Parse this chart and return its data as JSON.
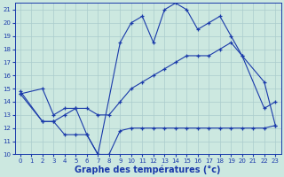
{
  "background_color": "#cce8e0",
  "grid_color": "#aacccc",
  "line_color": "#1a3aaa",
  "xlabel": "Graphe des températures (°c)",
  "xlabel_fontsize": 7,
  "xlim": [
    -0.5,
    23.5
  ],
  "ylim": [
    10,
    21.5
  ],
  "xticks": [
    0,
    1,
    2,
    3,
    4,
    5,
    6,
    7,
    8,
    9,
    10,
    11,
    12,
    13,
    14,
    15,
    16,
    17,
    18,
    19,
    20,
    21,
    22,
    23
  ],
  "yticks": [
    10,
    11,
    12,
    13,
    14,
    15,
    16,
    17,
    18,
    19,
    20,
    21
  ],
  "series": [
    {
      "x": [
        0,
        2,
        3,
        4,
        5,
        6,
        7,
        9,
        10,
        11,
        12,
        13,
        14,
        15,
        16,
        17,
        18,
        19,
        20,
        22,
        23
      ],
      "y": [
        14.6,
        12.5,
        12.5,
        13.0,
        13.5,
        11.5,
        10.0,
        18.5,
        20.0,
        20.5,
        18.5,
        21.0,
        21.5,
        21.0,
        19.5,
        20.0,
        20.5,
        19.0,
        17.5,
        13.5,
        14.0
      ]
    },
    {
      "x": [
        0,
        2,
        3,
        4,
        5,
        6,
        7,
        8,
        9,
        10,
        11,
        12,
        13,
        14,
        15,
        16,
        17,
        18,
        19,
        20,
        21,
        22,
        23
      ],
      "y": [
        14.8,
        12.5,
        12.5,
        11.5,
        11.5,
        11.5,
        10.0,
        10.0,
        11.8,
        12.0,
        12.0,
        12.0,
        12.0,
        12.0,
        12.0,
        12.0,
        12.0,
        12.0,
        12.0,
        12.0,
        12.0,
        12.0,
        12.2
      ]
    },
    {
      "x": [
        0,
        2,
        3,
        4,
        5,
        6,
        7,
        8,
        9,
        10,
        11,
        12,
        13,
        14,
        15,
        16,
        17,
        18,
        19,
        20,
        22,
        23
      ],
      "y": [
        14.6,
        15.0,
        13.0,
        13.5,
        13.5,
        13.5,
        13.0,
        13.0,
        14.0,
        15.0,
        15.5,
        16.0,
        16.5,
        17.0,
        17.5,
        17.5,
        17.5,
        18.0,
        18.5,
        17.5,
        15.5,
        12.2
      ]
    }
  ]
}
